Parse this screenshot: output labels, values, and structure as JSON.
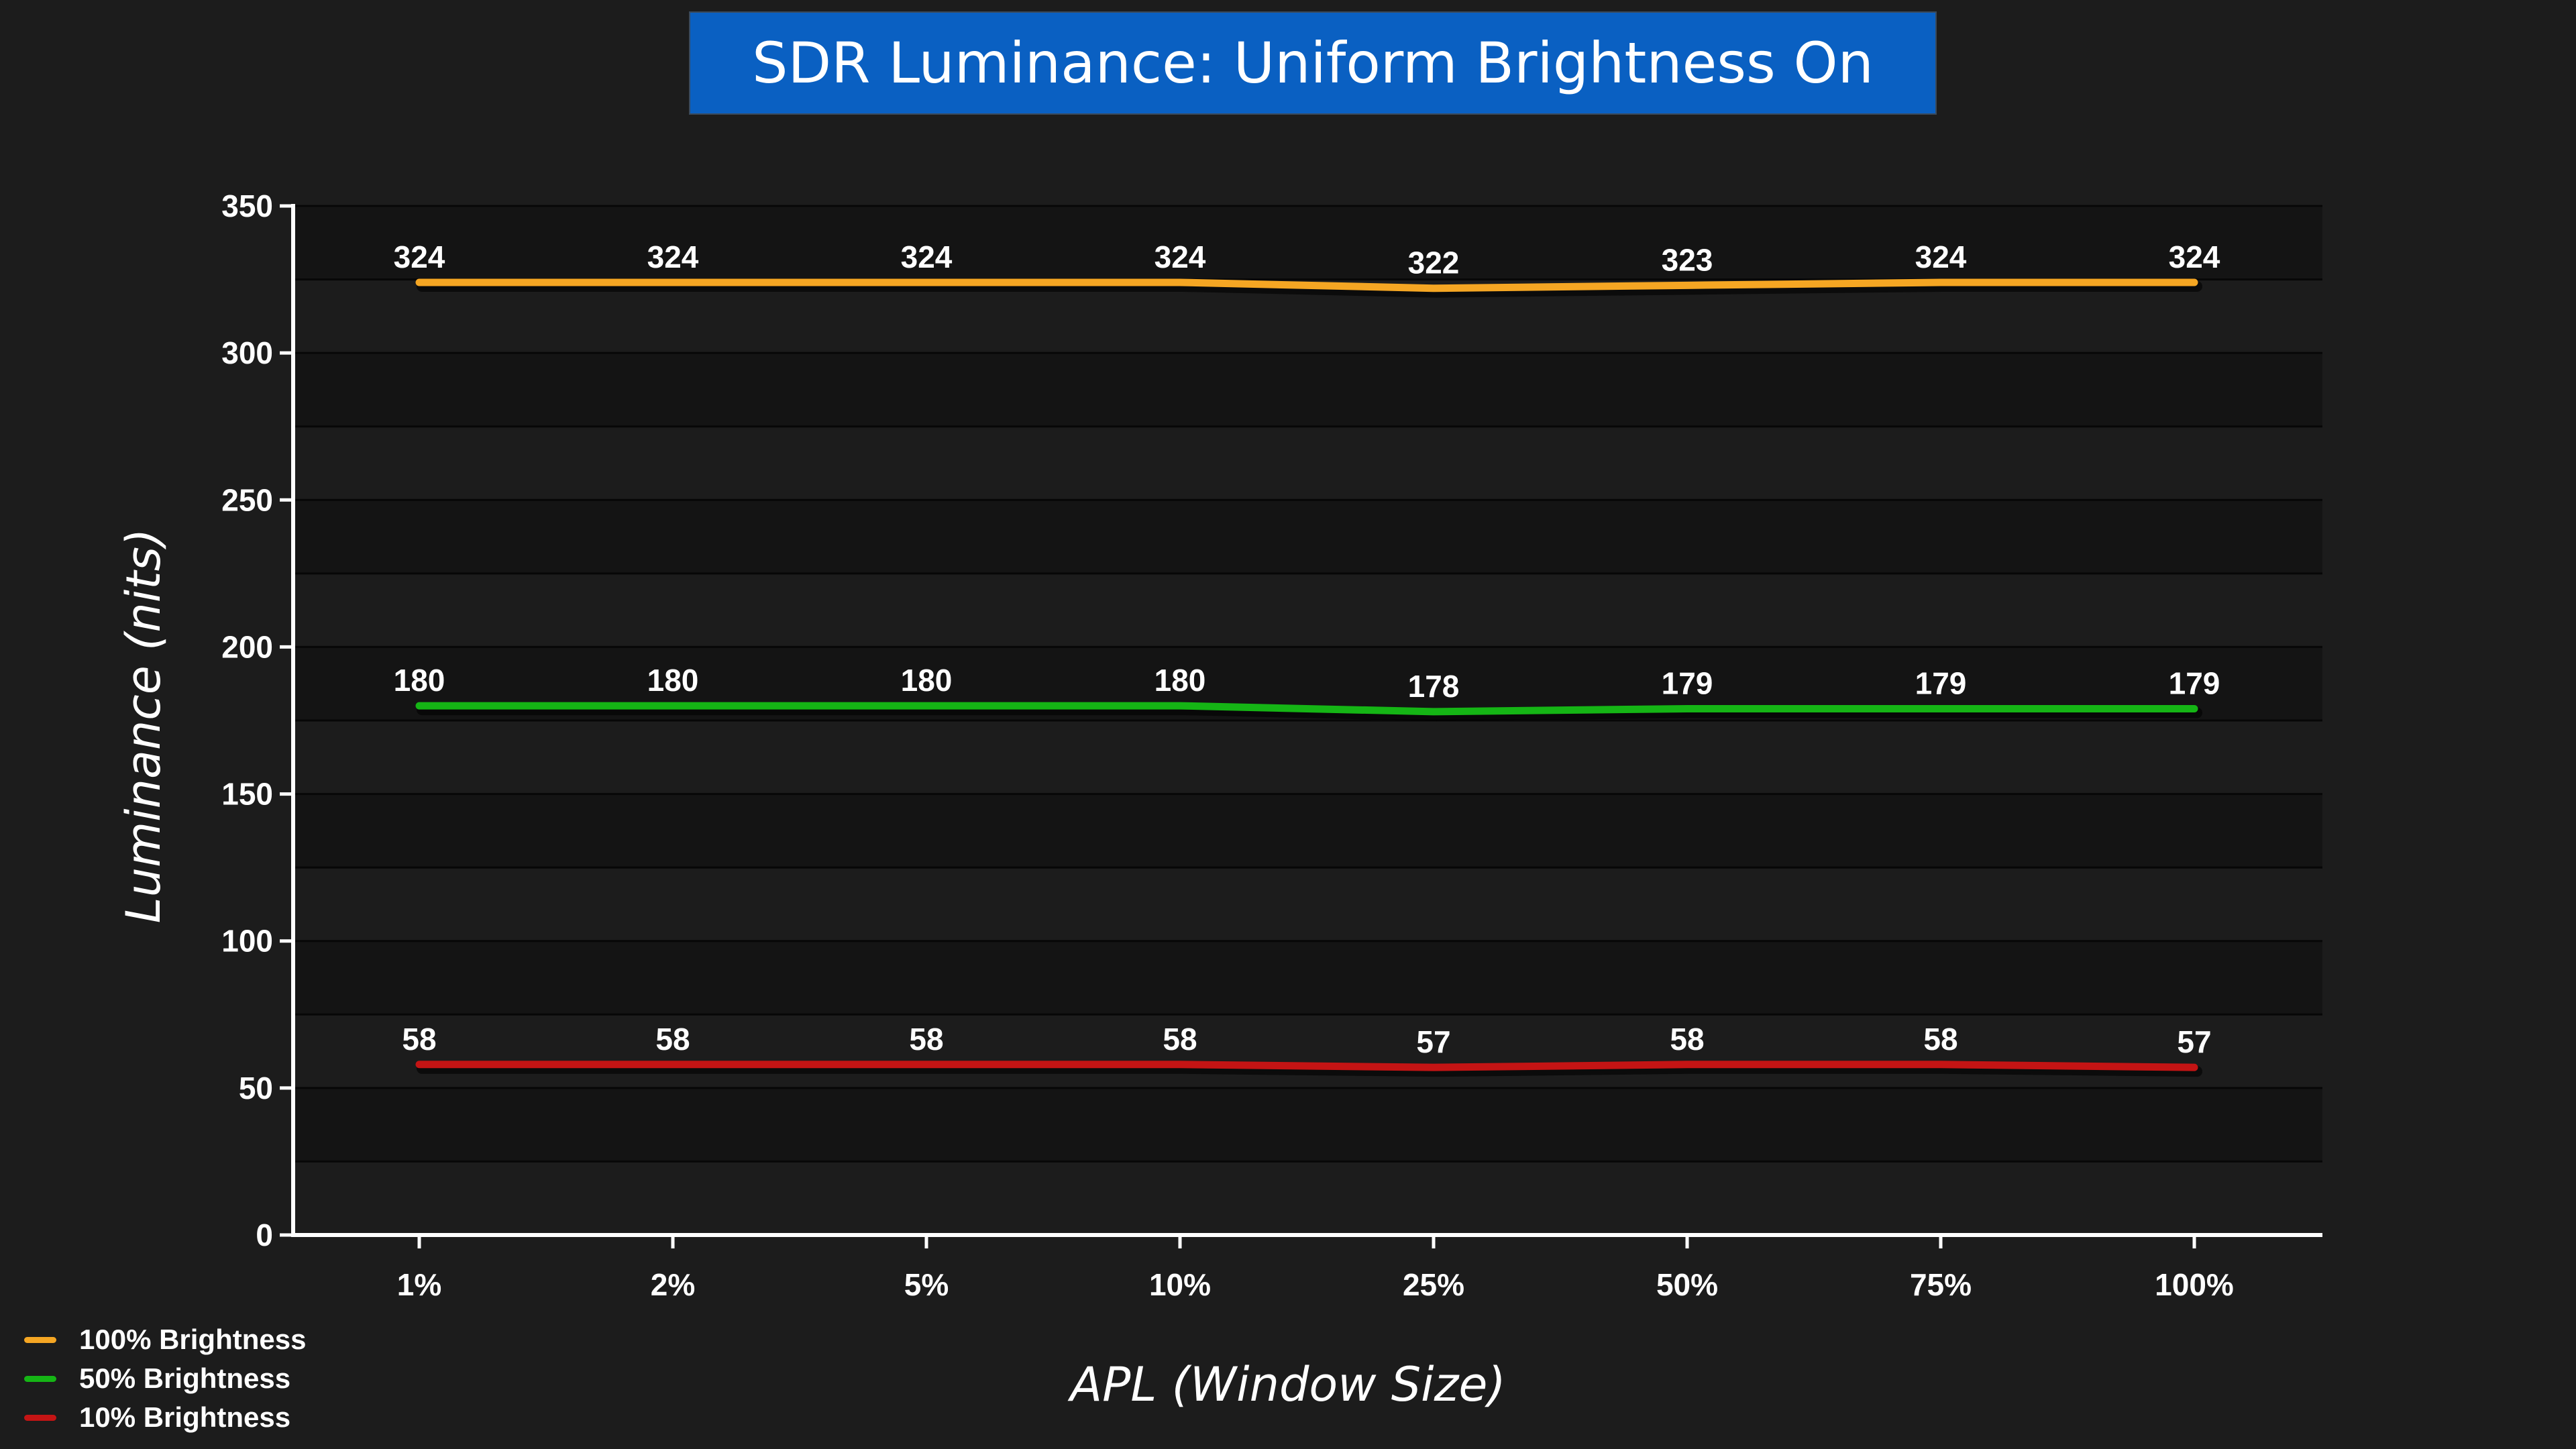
{
  "chart_data": {
    "type": "line",
    "title": "SDR Luminance: Uniform Brightness On",
    "xlabel": "APL (Window Size)",
    "ylabel": "Luminance (nits)",
    "categories": [
      "1%",
      "2%",
      "5%",
      "10%",
      "25%",
      "50%",
      "75%",
      "100%"
    ],
    "ylim": [
      0,
      350
    ],
    "yticks": [
      0,
      50,
      100,
      150,
      200,
      250,
      300,
      350
    ],
    "grid": true,
    "legend_position": "bottom-left",
    "series": [
      {
        "name": "100% Brightness",
        "color": "#f5a623",
        "values": [
          324,
          324,
          324,
          324,
          322,
          323,
          324,
          324
        ]
      },
      {
        "name": "50% Brightness",
        "color": "#15b515",
        "values": [
          180,
          180,
          180,
          180,
          178,
          179,
          179,
          179
        ]
      },
      {
        "name": "10% Brightness",
        "color": "#c41414",
        "values": [
          58,
          58,
          58,
          58,
          57,
          58,
          58,
          57
        ]
      }
    ]
  },
  "colors": {
    "background": "#1c1c1c",
    "title_box": "#0a60c2",
    "band_dark": "#141414",
    "band_light": "#1c1c1c",
    "axis": "#ffffff",
    "text": "#ffffff"
  }
}
